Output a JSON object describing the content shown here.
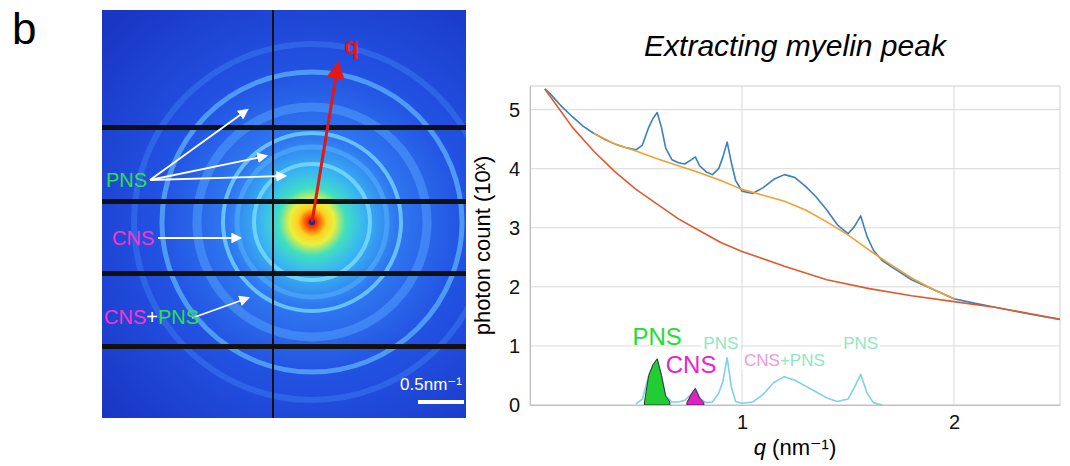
{
  "panel_label": "b",
  "image": {
    "q_label": "q",
    "scale_bar": "0.5nm⁻¹",
    "labels": [
      {
        "parts": [
          {
            "text": "PNS",
            "color": "#2ee04a"
          }
        ]
      },
      {
        "parts": [
          {
            "text": "CNS",
            "color": "#ff33cc"
          }
        ]
      },
      {
        "parts": [
          {
            "text": "CNS",
            "color": "#ff33cc"
          },
          {
            "text": "+",
            "color": "#ffffff"
          },
          {
            "text": "PNS",
            "color": "#2ee04a"
          }
        ]
      }
    ]
  },
  "chart_data": {
    "type": "line",
    "title": "Extracting myelin peak",
    "xlabel": "q (nm⁻¹)",
    "ylabel": "photon count (10ˣ)",
    "xlim": [
      0,
      2.5
    ],
    "xticks": [
      1,
      2
    ],
    "ylim": [
      0,
      5.4
    ],
    "yticks": [
      0,
      1,
      2,
      3,
      4,
      5
    ],
    "grid": true,
    "series": [
      {
        "type": "line",
        "color": "#3a7fc1",
        "x": [
          0.07,
          0.1,
          0.15,
          0.2,
          0.25,
          0.3,
          0.35,
          0.4,
          0.45,
          0.5,
          0.53,
          0.56,
          0.58,
          0.6,
          0.62,
          0.64,
          0.67,
          0.7,
          0.73,
          0.76,
          0.78,
          0.8,
          0.83,
          0.86,
          0.89,
          0.91,
          0.93,
          0.95,
          0.97,
          1.0,
          1.05,
          1.1,
          1.15,
          1.2,
          1.25,
          1.3,
          1.35,
          1.4,
          1.45,
          1.5,
          1.53,
          1.56,
          1.59,
          1.62,
          1.66,
          1.7,
          1.8,
          1.9,
          2.0,
          2.1,
          2.2,
          2.3,
          2.4,
          2.5
        ],
        "values": [
          5.35,
          5.25,
          5.05,
          4.88,
          4.72,
          4.6,
          4.5,
          4.42,
          4.36,
          4.32,
          4.4,
          4.7,
          4.85,
          4.95,
          4.7,
          4.35,
          4.15,
          4.1,
          4.08,
          4.15,
          4.2,
          4.05,
          3.95,
          3.9,
          4.0,
          4.2,
          4.45,
          4.1,
          3.8,
          3.62,
          3.58,
          3.68,
          3.82,
          3.9,
          3.85,
          3.7,
          3.52,
          3.3,
          3.05,
          2.9,
          3.02,
          3.2,
          2.85,
          2.62,
          2.45,
          2.35,
          2.12,
          1.96,
          1.8,
          1.72,
          1.65,
          1.58,
          1.51,
          1.45
        ]
      },
      {
        "type": "line",
        "color": "#e05a2b",
        "x": [
          0.07,
          0.15,
          0.2,
          0.3,
          0.4,
          0.5,
          0.6,
          0.7,
          0.8,
          0.9,
          1.0,
          1.2,
          1.4,
          1.6,
          1.8,
          2.0,
          2.2,
          2.4,
          2.5
        ],
        "values": [
          5.35,
          4.95,
          4.7,
          4.3,
          3.95,
          3.65,
          3.4,
          3.15,
          2.95,
          2.75,
          2.6,
          2.35,
          2.12,
          1.97,
          1.85,
          1.75,
          1.65,
          1.52,
          1.45
        ]
      },
      {
        "type": "line",
        "color": "#f0a030",
        "x": [
          0.3,
          0.4,
          0.5,
          0.6,
          0.7,
          0.8,
          0.9,
          1.0,
          1.1,
          1.2,
          1.3,
          1.4,
          1.5,
          1.6,
          1.7,
          1.8,
          1.9,
          2.0
        ],
        "values": [
          4.6,
          4.42,
          4.3,
          4.17,
          4.05,
          3.93,
          3.8,
          3.65,
          3.55,
          3.45,
          3.3,
          3.1,
          2.88,
          2.62,
          2.38,
          2.15,
          1.96,
          1.8
        ]
      },
      {
        "type": "line",
        "color": "#7fd0ea",
        "x": [
          0.5,
          0.53,
          0.56,
          0.58,
          0.6,
          0.62,
          0.64,
          0.67,
          0.7,
          0.73,
          0.76,
          0.78,
          0.8,
          0.83,
          0.86,
          0.89,
          0.91,
          0.93,
          0.95,
          0.97,
          1.0,
          1.05,
          1.1,
          1.15,
          1.2,
          1.25,
          1.3,
          1.35,
          1.4,
          1.45,
          1.5,
          1.53,
          1.56,
          1.59,
          1.62,
          1.66
        ],
        "values": [
          0.02,
          0.1,
          0.5,
          0.68,
          0.78,
          0.5,
          0.15,
          0.05,
          0.05,
          0.08,
          0.18,
          0.28,
          0.12,
          0.04,
          0.05,
          0.2,
          0.4,
          0.8,
          0.3,
          0.06,
          0.03,
          0.05,
          0.18,
          0.38,
          0.48,
          0.42,
          0.32,
          0.22,
          0.12,
          0.06,
          0.1,
          0.3,
          0.52,
          0.2,
          0.04,
          0.0
        ]
      },
      {
        "type": "area",
        "color": "#22cc33",
        "x": [
          0.54,
          0.56,
          0.58,
          0.6,
          0.62,
          0.64,
          0.66
        ],
        "values": [
          0.05,
          0.5,
          0.68,
          0.78,
          0.5,
          0.15,
          0.05
        ]
      },
      {
        "type": "area",
        "color": "#e020c0",
        "x": [
          0.74,
          0.76,
          0.78,
          0.8,
          0.82
        ],
        "values": [
          0.04,
          0.18,
          0.28,
          0.12,
          0.04
        ]
      }
    ],
    "annotations": [
      {
        "text": "PNS",
        "color": "#22dd33",
        "x": 0.6,
        "y": 1.02
      },
      {
        "text": "CNS",
        "color": "#ee22cc",
        "x": 0.76,
        "y": 0.55
      }
    ],
    "peak_labels": [
      {
        "parts": [
          {
            "text": "PNS",
            "color": "#8ee8c0"
          }
        ],
        "x": 0.9,
        "y": 0.95
      },
      {
        "parts": [
          {
            "text": "CNS",
            "color": "#f099dd"
          },
          {
            "text": "+PNS",
            "color": "#8ee8c0"
          }
        ],
        "x": 1.2,
        "y": 0.66
      },
      {
        "parts": [
          {
            "text": "PNS",
            "color": "#8ee8c0"
          }
        ],
        "x": 1.56,
        "y": 0.95
      }
    ]
  }
}
